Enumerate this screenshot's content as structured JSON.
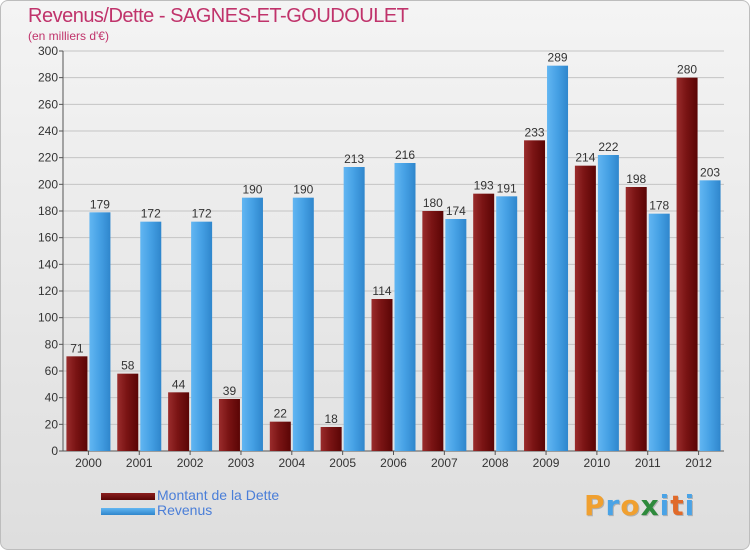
{
  "header": {
    "title": "Revenus/Dette - SAGNES-ET-GOUDOULET",
    "subtitle": "(en milliers d'€)"
  },
  "legend": {
    "items": [
      {
        "label": "Montant de la Dette",
        "color": "#6e0b0b"
      },
      {
        "label": "Revenus",
        "color": "#4aa3e6"
      }
    ]
  },
  "logo": {
    "text": "Proxiti",
    "letters": [
      {
        "char": "P",
        "color": "#f0a030"
      },
      {
        "char": "r",
        "color": "#4aa3e6"
      },
      {
        "char": "o",
        "color": "#f0a030"
      },
      {
        "char": "x",
        "color": "#2e8a3c"
      },
      {
        "char": "i",
        "color": "#4aa3e6"
      },
      {
        "char": "t",
        "color": "#e06a2a"
      },
      {
        "char": "i",
        "color": "#4aa3e6"
      }
    ]
  },
  "chart_data": {
    "type": "bar",
    "title": "Revenus/Dette - SAGNES-ET-GOUDOULET",
    "subtitle": "(en milliers d'€)",
    "categories": [
      "2000",
      "2001",
      "2002",
      "2003",
      "2004",
      "2005",
      "2006",
      "2007",
      "2008",
      "2009",
      "2010",
      "2011",
      "2012"
    ],
    "series": [
      {
        "name": "Montant de la Dette",
        "color": "#6e0b0b",
        "values": [
          71,
          58,
          44,
          39,
          22,
          18,
          114,
          180,
          193,
          233,
          214,
          198,
          280
        ]
      },
      {
        "name": "Revenus",
        "color": "#4aa3e6",
        "values": [
          179,
          172,
          172,
          190,
          190,
          213,
          216,
          174,
          191,
          289,
          222,
          178,
          203
        ]
      }
    ],
    "ylim": [
      0,
      300
    ],
    "yticks": [
      0,
      20,
      40,
      60,
      80,
      100,
      120,
      140,
      160,
      180,
      200,
      220,
      240,
      260,
      280,
      300
    ],
    "grid": true,
    "legend_position": "bottom-left"
  }
}
